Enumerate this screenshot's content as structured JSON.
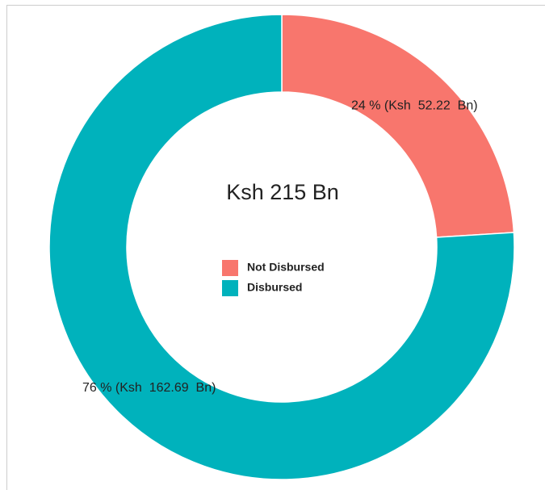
{
  "chart_data": {
    "type": "pie",
    "donut": true,
    "center_text": "Ksh 215 Bn",
    "categories": [
      "Not Disbursed",
      "Disbursed"
    ],
    "values": [
      24,
      76
    ],
    "value_labels": [
      "24 % (Ksh  52.22  Bn)",
      "76 % (Ksh  162.69  Bn)"
    ],
    "colors": [
      "#f8766d",
      "#00b2bc"
    ]
  }
}
